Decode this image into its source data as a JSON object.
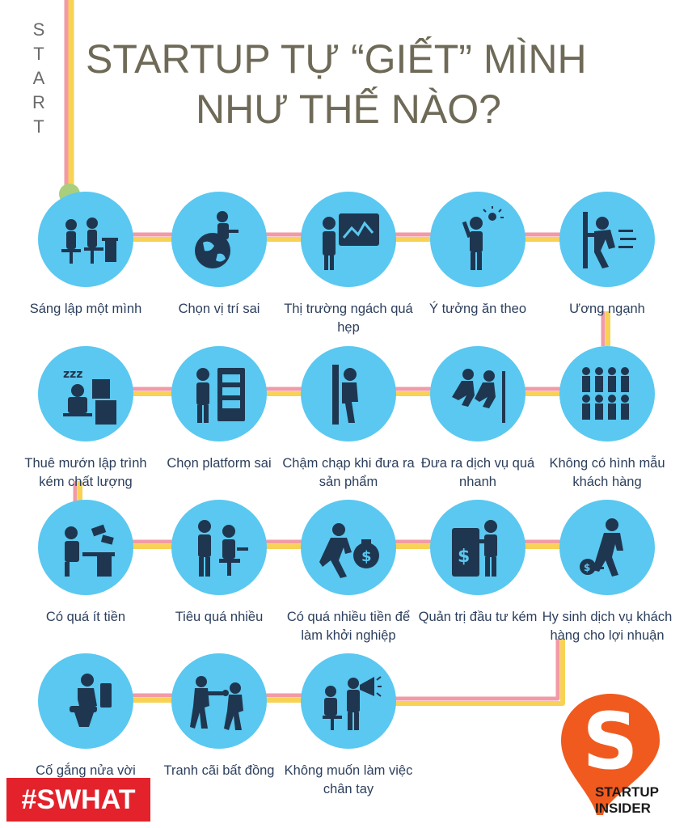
{
  "vertical_label": [
    "S",
    "T",
    "A",
    "R",
    "T"
  ],
  "title": {
    "line1": "STARTUP TỰ “GIẾT” MÌNH",
    "line2": "NHƯ THẾ NÀO?"
  },
  "colors": {
    "circle": "#5ac8f0",
    "icon": "#1f3650",
    "path_pink": "#f29aa6",
    "path_yellow": "#f7d254",
    "start_dot": "#a9cf7d",
    "hashtag_bg": "#e3222b",
    "logo": "#f05a1e"
  },
  "steps": [
    {
      "label": "Sáng lập một mình",
      "icon": "two-workers-desk-icon"
    },
    {
      "label": "Chọn vị trí sai",
      "icon": "person-on-globe-icon"
    },
    {
      "label": "Thị trường ngách quá hẹp",
      "icon": "presenter-chart-icon"
    },
    {
      "label": "Ý tưởng ăn theo",
      "icon": "idea-person-icon"
    },
    {
      "label": "Ương ngạnh",
      "icon": "person-pushing-wall-icon"
    },
    {
      "label": "Thuê mướn lập trình kém chất lượng",
      "icon": "sleeping-programmer-icon"
    },
    {
      "label": "Chọn platform sai",
      "icon": "person-server-icon"
    },
    {
      "label": "Chậm chạp khi đưa ra sản phẩm",
      "icon": "person-leaning-wall-icon"
    },
    {
      "label": "Đưa ra dịch vụ quá nhanh",
      "icon": "runners-icon"
    },
    {
      "label": "Không có hình mẫu khách hàng",
      "icon": "crowd-icon"
    },
    {
      "label": "Có quá ít tiền",
      "icon": "person-desk-money-icon"
    },
    {
      "label": "Tiêu quá nhiều",
      "icon": "person-boss-icon"
    },
    {
      "label": "Có quá nhiều tiền để làm khởi nghiệp",
      "icon": "person-money-bag-icon"
    },
    {
      "label": "Quản trị đầu tư kém",
      "icon": "atm-person-icon"
    },
    {
      "label": "Hy sinh dịch vụ khách hàng cho lợi nhuận",
      "icon": "person-ball-chain-icon"
    },
    {
      "label": "Cố gắng nửa vời",
      "icon": "person-toilet-icon"
    },
    {
      "label": "Tranh cãi bất đồng",
      "icon": "fighting-people-icon"
    },
    {
      "label": "Không muốn làm việc chân tay",
      "icon": "megaphone-worker-icon"
    }
  ],
  "hashtag": "#SWHAT",
  "logo": {
    "text_line1": "STARTUP",
    "text_line2": "INSIDER"
  }
}
